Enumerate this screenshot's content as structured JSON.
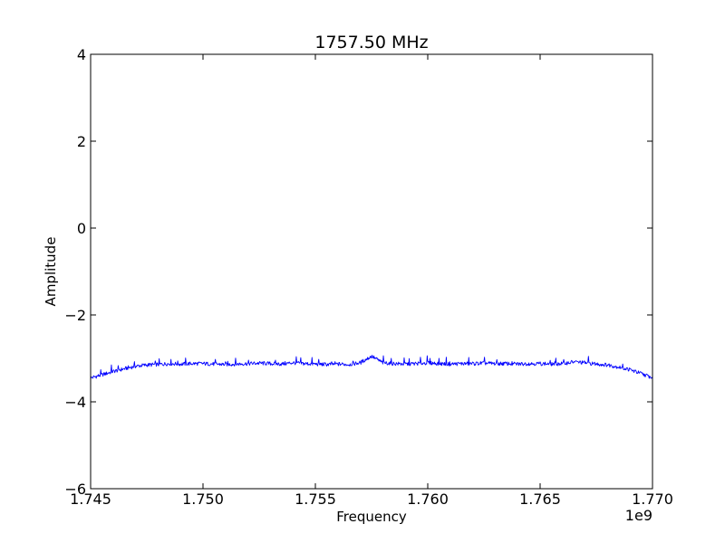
{
  "chart_data": {
    "type": "line",
    "title": "1757.50 MHz",
    "xlabel": "Frequency",
    "ylabel": "Amplitude",
    "x_offset_label": "1e9",
    "xlim": [
      1.745,
      1.77
    ],
    "ylim": [
      -6,
      4
    ],
    "x_unit_multiplier": 1000000000.0,
    "xticks": [
      1.745,
      1.75,
      1.755,
      1.76,
      1.765,
      1.77
    ],
    "xtick_labels": [
      "1.745",
      "1.750",
      "1.755",
      "1.760",
      "1.765",
      "1.770"
    ],
    "yticks": [
      4,
      2,
      0,
      -2,
      -4,
      -6
    ],
    "ytick_labels": [
      "4",
      "2",
      "0",
      "−2",
      "−4",
      "−6"
    ],
    "grid": false,
    "colors": {
      "line": "#0000ff",
      "axes": "#000000",
      "background": "#ffffff"
    },
    "series": [
      {
        "color": "#0000ff",
        "x": [
          1.745,
          1.7455,
          1.746,
          1.7465,
          1.747,
          1.7475,
          1.748,
          1.7485,
          1.749,
          1.7495,
          1.75,
          1.7505,
          1.751,
          1.7515,
          1.752,
          1.7525,
          1.753,
          1.7535,
          1.754,
          1.7545,
          1.755,
          1.7555,
          1.756,
          1.7565,
          1.757,
          1.7575,
          1.758,
          1.7585,
          1.759,
          1.7595,
          1.76,
          1.7605,
          1.761,
          1.7615,
          1.762,
          1.7625,
          1.763,
          1.7635,
          1.764,
          1.7645,
          1.765,
          1.7655,
          1.766,
          1.7665,
          1.767,
          1.7675,
          1.768,
          1.7685,
          1.769,
          1.7695,
          1.77
        ],
        "y": [
          -3.45,
          -3.38,
          -3.3,
          -3.24,
          -3.18,
          -3.15,
          -3.14,
          -3.12,
          -3.13,
          -3.12,
          -3.12,
          -3.13,
          -3.14,
          -3.13,
          -3.12,
          -3.11,
          -3.12,
          -3.13,
          -3.1,
          -3.12,
          -3.13,
          -3.14,
          -3.13,
          -3.14,
          -3.1,
          -2.95,
          -3.1,
          -3.12,
          -3.13,
          -3.12,
          -3.1,
          -3.12,
          -3.13,
          -3.12,
          -3.12,
          -3.11,
          -3.12,
          -3.12,
          -3.13,
          -3.12,
          -3.12,
          -3.13,
          -3.12,
          -3.08,
          -3.1,
          -3.13,
          -3.15,
          -3.2,
          -3.26,
          -3.35,
          -3.45
        ]
      }
    ]
  }
}
